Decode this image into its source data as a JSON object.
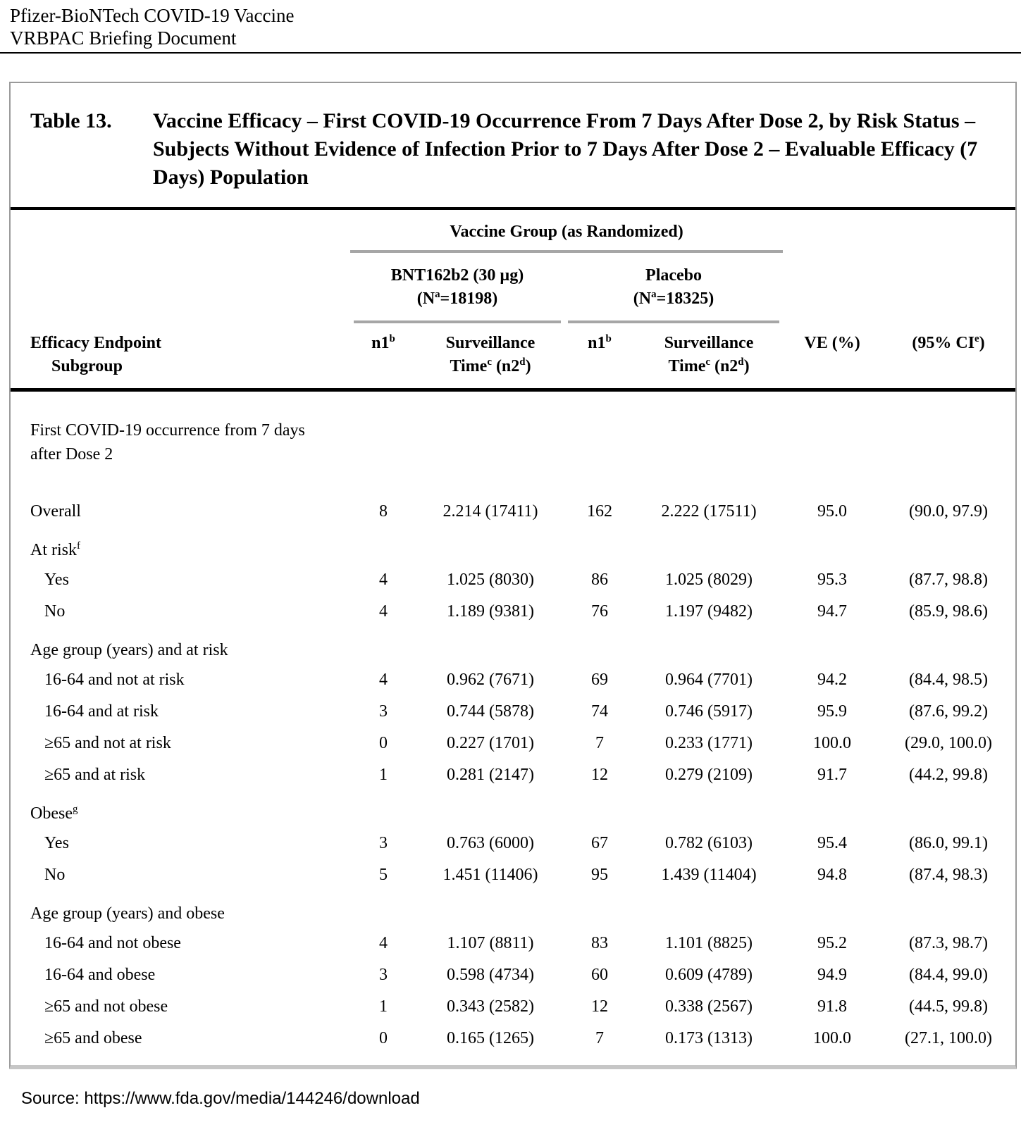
{
  "page_header": {
    "line1": "Pfizer-BioNTech COVID-19 Vaccine",
    "line2": "VRBPAC Briefing Document"
  },
  "table": {
    "label": "Table 13.",
    "title": "Vaccine Efficacy – First COVID-19 Occurrence From 7 Days After Dose 2, by Risk Status – Subjects Without Evidence of Infection Prior to 7 Days After Dose 2 – Evaluable Efficacy (7 Days) Population",
    "group_header": "Vaccine Group (as Randomized)",
    "groups": [
      {
        "name": "BNT162b2 (30 µg)",
        "n_prefix": "(N",
        "n_sup": "a",
        "n_rest": "=18198)"
      },
      {
        "name": "Placebo",
        "n_prefix": "(N",
        "n_sup": "a",
        "n_rest": "=18325)"
      }
    ],
    "columns": {
      "endpoint_line1": "Efficacy Endpoint",
      "endpoint_line2": "Subgroup",
      "n1_base": "n1",
      "n1_sup": "b",
      "surv_line1": "Surveillance",
      "surv_time_base": "Time",
      "surv_time_sup": "c",
      "surv_n2_mid": " (n2",
      "surv_n2_sup": "d",
      "surv_n2_end": ")",
      "ve": "VE (%)",
      "ci_open": "(95% CI",
      "ci_sup": "e",
      "ci_close": ")"
    },
    "rows": [
      {
        "type": "section",
        "class": "lead",
        "label": "First COVID-19 occurrence from 7 days\nafter Dose 2"
      },
      {
        "type": "data",
        "label": "Overall",
        "values": [
          "8",
          "2.214 (17411)",
          "162",
          "2.222 (17511)",
          "95.0",
          "(90.0, 97.9)"
        ]
      },
      {
        "type": "section",
        "label": "At risk",
        "sup": "f"
      },
      {
        "type": "data",
        "indent": true,
        "label": "Yes",
        "values": [
          "4",
          "1.025 (8030)",
          "86",
          "1.025 (8029)",
          "95.3",
          "(87.7, 98.8)"
        ]
      },
      {
        "type": "data",
        "indent": true,
        "label": "No",
        "values": [
          "4",
          "1.189 (9381)",
          "76",
          "1.197 (9482)",
          "94.7",
          "(85.9, 98.6)"
        ]
      },
      {
        "type": "section",
        "label": "Age group (years) and at risk"
      },
      {
        "type": "data",
        "indent": true,
        "label": "16-64 and not at risk",
        "values": [
          "4",
          "0.962 (7671)",
          "69",
          "0.964 (7701)",
          "94.2",
          "(84.4, 98.5)"
        ]
      },
      {
        "type": "data",
        "indent": true,
        "label": "16-64 and at risk",
        "values": [
          "3",
          "0.744 (5878)",
          "74",
          "0.746 (5917)",
          "95.9",
          "(87.6, 99.2)"
        ]
      },
      {
        "type": "data",
        "indent": true,
        "label": "≥65 and not at risk",
        "values": [
          "0",
          "0.227 (1701)",
          "7",
          "0.233 (1771)",
          "100.0",
          "(29.0, 100.0)"
        ]
      },
      {
        "type": "data",
        "indent": true,
        "label": "≥65 and at risk",
        "values": [
          "1",
          "0.281 (2147)",
          "12",
          "0.279 (2109)",
          "91.7",
          "(44.2, 99.8)"
        ]
      },
      {
        "type": "section",
        "label": "Obese",
        "sup": "g"
      },
      {
        "type": "data",
        "indent": true,
        "label": "Yes",
        "values": [
          "3",
          "0.763 (6000)",
          "67",
          "0.782 (6103)",
          "95.4",
          "(86.0, 99.1)"
        ]
      },
      {
        "type": "data",
        "indent": true,
        "label": "No",
        "values": [
          "5",
          "1.451 (11406)",
          "95",
          "1.439 (11404)",
          "94.8",
          "(87.4, 98.3)"
        ]
      },
      {
        "type": "section",
        "label": "Age group (years) and obese"
      },
      {
        "type": "data",
        "indent": true,
        "label": "16-64 and not obese",
        "values": [
          "4",
          "1.107 (8811)",
          "83",
          "1.101 (8825)",
          "95.2",
          "(87.3, 98.7)"
        ]
      },
      {
        "type": "data",
        "indent": true,
        "label": "16-64 and obese",
        "values": [
          "3",
          "0.598 (4734)",
          "60",
          "0.609 (4789)",
          "94.9",
          "(84.4, 99.0)"
        ]
      },
      {
        "type": "data",
        "indent": true,
        "label": "≥65 and not obese",
        "values": [
          "1",
          "0.343 (2582)",
          "12",
          "0.338 (2567)",
          "91.8",
          "(44.5, 99.8)"
        ]
      },
      {
        "type": "data",
        "indent": true,
        "label": "≥65 and obese",
        "values": [
          "0",
          "0.165 (1265)",
          "7",
          "0.173 (1313)",
          "100.0",
          "(27.1, 100.0)"
        ]
      }
    ],
    "column_cell_names": [
      "n1-vaccine",
      "surveillance-time-vaccine",
      "n1-placebo",
      "surveillance-time-placebo",
      "ve-percent",
      "ci-95"
    ]
  },
  "footer": {
    "source": "Source: https://www.fda.gov/media/144246/download"
  }
}
